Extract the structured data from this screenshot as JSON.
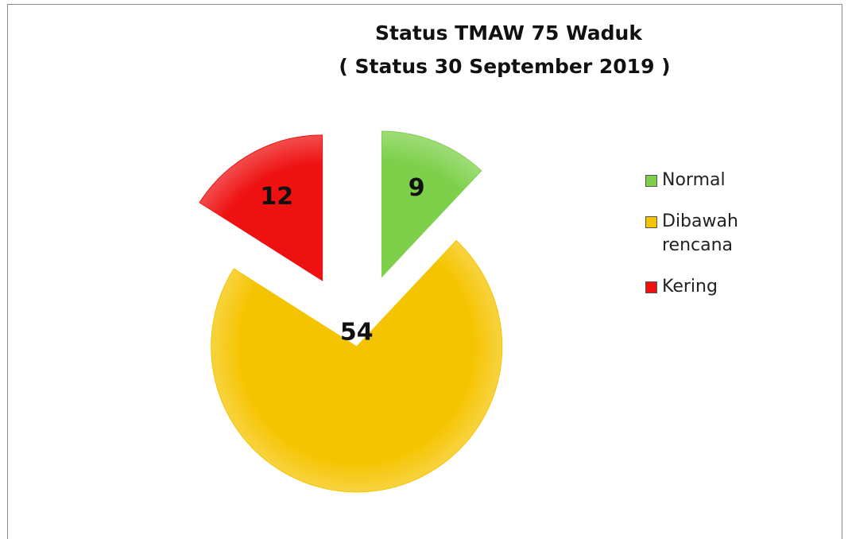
{
  "chart_data": {
    "type": "pie",
    "title": "Status TMAW 75 Waduk",
    "subtitle": "( Status 30 September 2019 )",
    "categories": [
      "Normal",
      "Dibawah rencana",
      "Kering"
    ],
    "values": [
      9,
      54,
      12
    ],
    "colors": [
      "#7ed04b",
      "#f5c400",
      "#ee1111"
    ],
    "legend": "right"
  }
}
